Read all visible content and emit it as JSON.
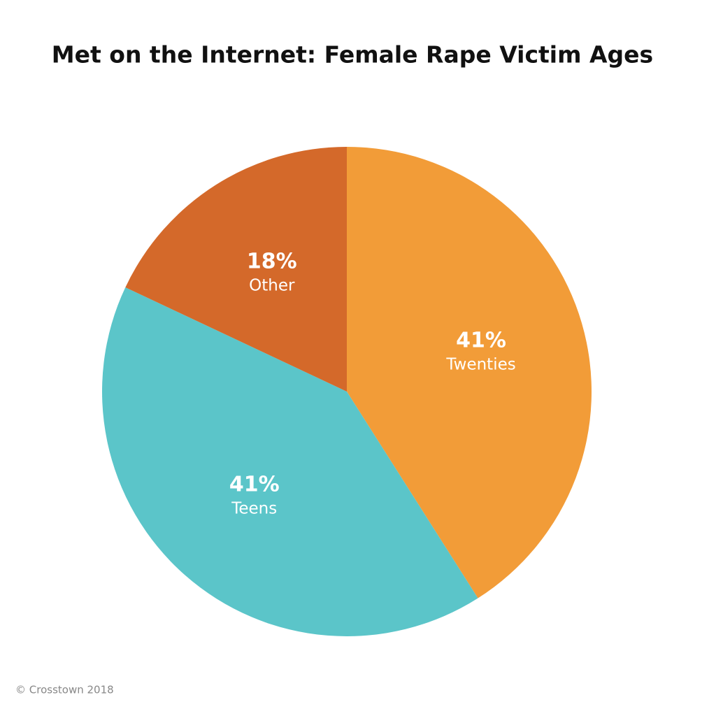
{
  "chart_data": {
    "type": "pie",
    "title": "Met on the Internet: Female Rape Victim Ages",
    "categories": [
      "Twenties",
      "Teens",
      "Other"
    ],
    "values": [
      41,
      41,
      18
    ],
    "value_labels": [
      "41%",
      "41%",
      "18%"
    ],
    "colors": [
      "#f29c38",
      "#5bc5c9",
      "#d4692a"
    ],
    "credit": "© Crosstown 2018"
  }
}
